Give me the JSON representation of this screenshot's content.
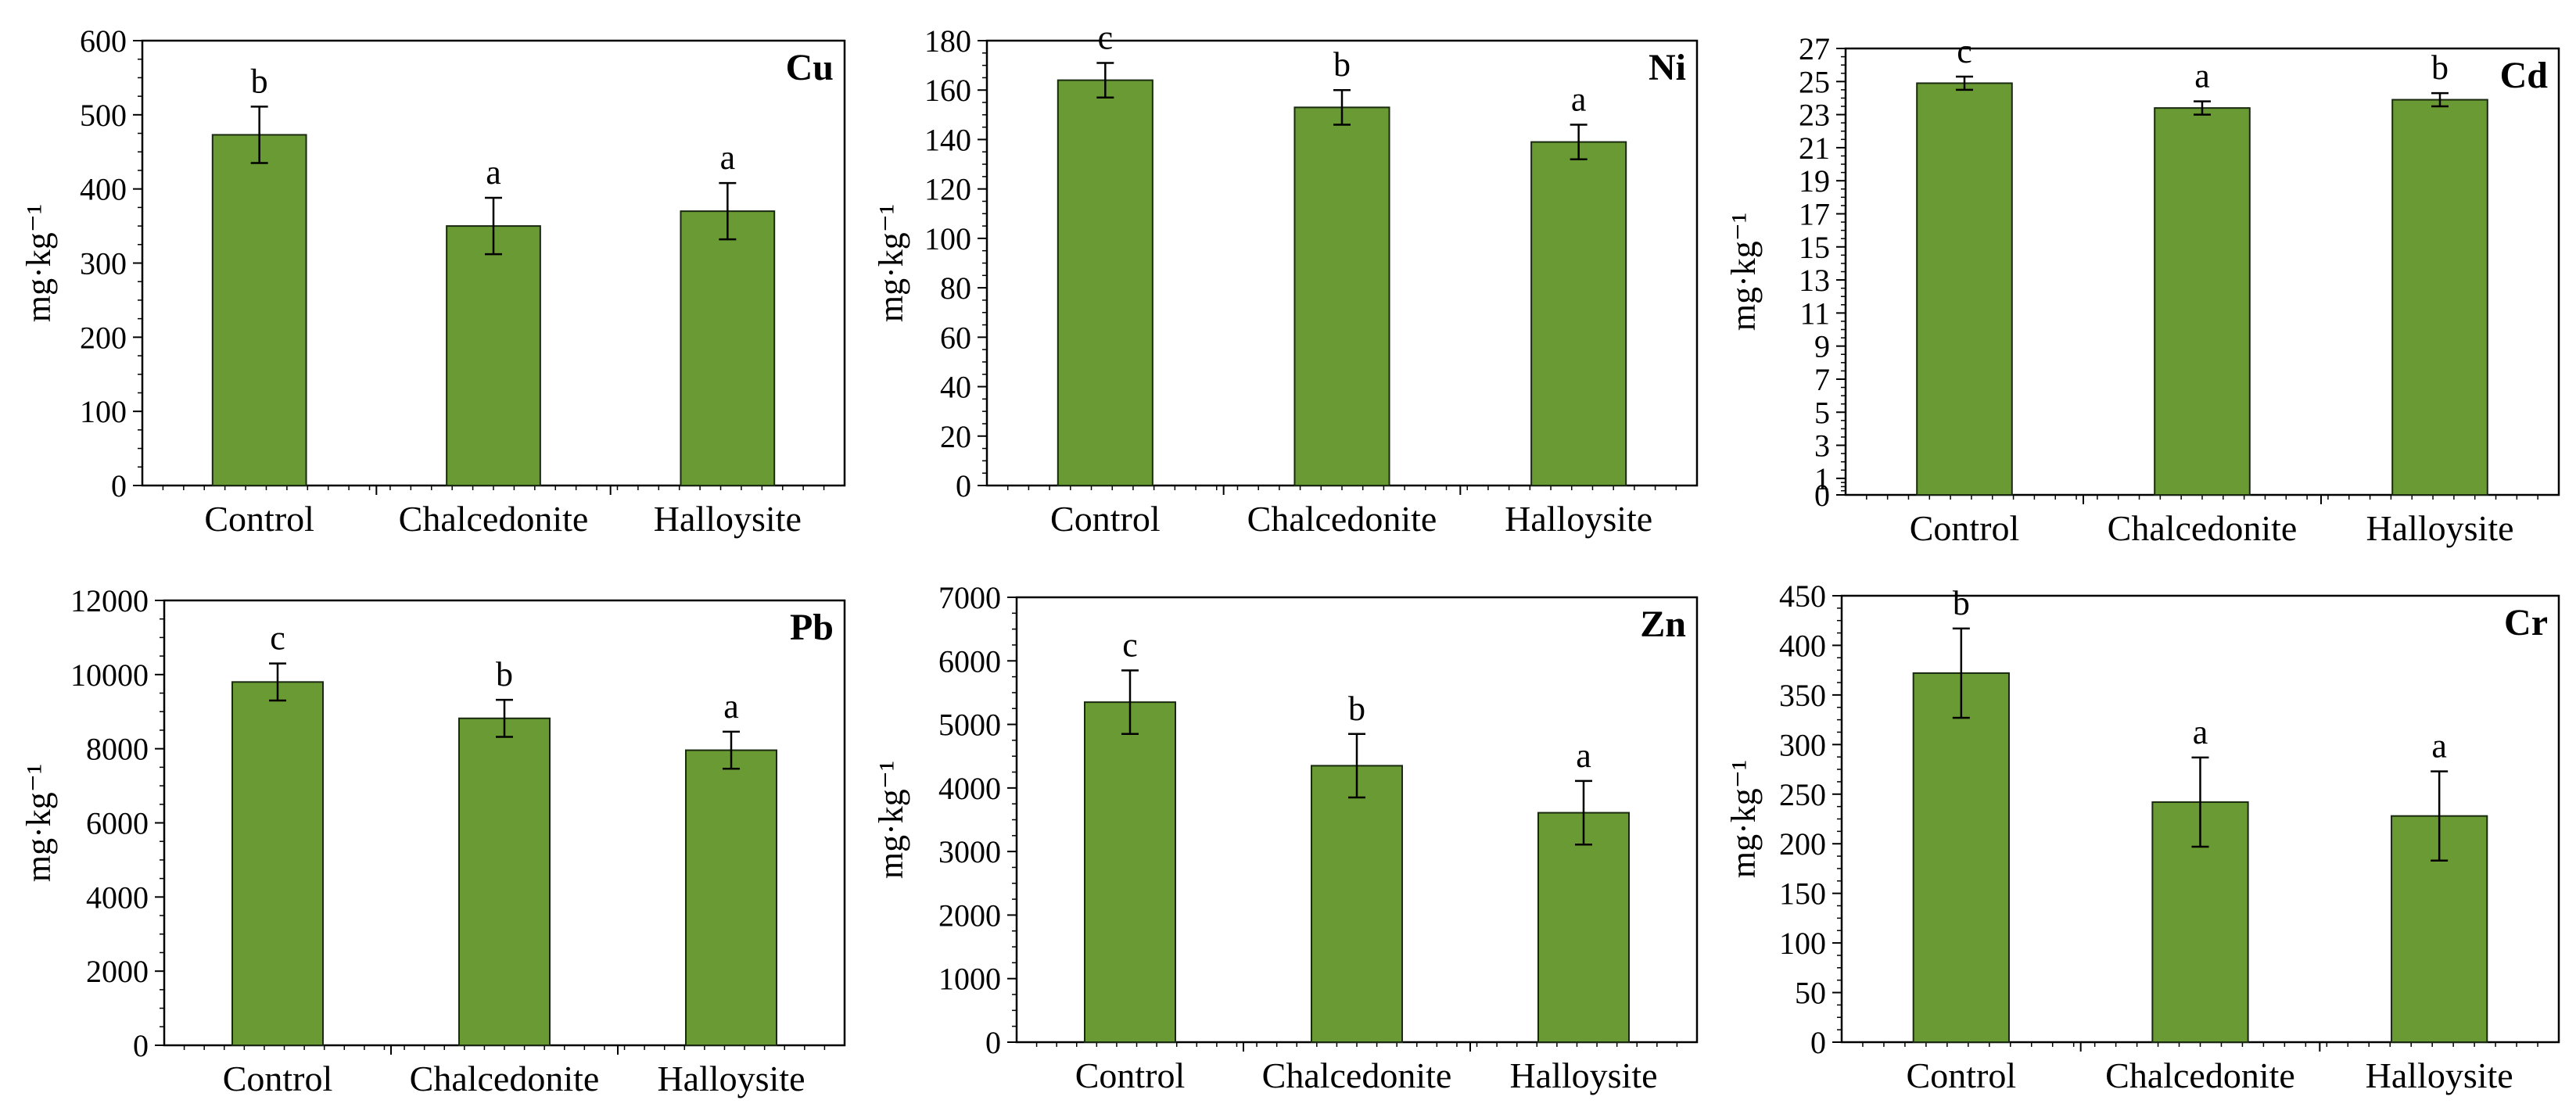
{
  "chart_data": [
    {
      "type": "bar",
      "title": "Cu",
      "ylabel": "mg·kg⁻¹",
      "xlabel": "",
      "categories": [
        "Control",
        "Chalcedonite",
        "Halloysite"
      ],
      "values": [
        473,
        350,
        370
      ],
      "errors": [
        38,
        38,
        38
      ],
      "letters": [
        "b",
        "a",
        "a"
      ],
      "ylim": [
        0,
        600
      ],
      "yticks": [
        0,
        100,
        200,
        300,
        400,
        500,
        600
      ],
      "bar_color": "#6a9a33",
      "grid": false
    },
    {
      "type": "bar",
      "title": "Ni",
      "ylabel": "mg·kg⁻¹",
      "xlabel": "",
      "categories": [
        "Control",
        "Chalcedonite",
        "Halloysite"
      ],
      "values": [
        164,
        153,
        139
      ],
      "errors": [
        7,
        7,
        7
      ],
      "letters": [
        "c",
        "b",
        "a"
      ],
      "ylim": [
        0,
        180
      ],
      "yticks": [
        0,
        20,
        40,
        60,
        80,
        100,
        120,
        140,
        160,
        180
      ],
      "bar_color": "#6a9a33",
      "grid": false
    },
    {
      "type": "bar",
      "title": "Cd",
      "ylabel": "mg·kg⁻¹",
      "xlabel": "",
      "categories": [
        "Control",
        "Chalcedonite",
        "Halloysite"
      ],
      "values": [
        24.9,
        23.4,
        23.9
      ],
      "errors": [
        0.4,
        0.4,
        0.4
      ],
      "letters": [
        "c",
        "a",
        "b"
      ],
      "ylim": [
        0,
        27
      ],
      "yticks": [
        0,
        1,
        3,
        5,
        7,
        9,
        11,
        13,
        15,
        17,
        19,
        21,
        23,
        25,
        27
      ],
      "bar_color": "#6a9a33",
      "grid": false
    },
    {
      "type": "bar",
      "title": "Pb",
      "ylabel": "mg·kg⁻¹",
      "xlabel": "",
      "categories": [
        "Control",
        "Chalcedonite",
        "Halloysite"
      ],
      "values": [
        9800,
        8820,
        7960
      ],
      "errors": [
        500,
        500,
        500
      ],
      "letters": [
        "c",
        "b",
        "a"
      ],
      "ylim": [
        0,
        12000
      ],
      "yticks": [
        0,
        2000,
        4000,
        6000,
        8000,
        10000,
        12000
      ],
      "bar_color": "#6a9a33",
      "grid": false
    },
    {
      "type": "bar",
      "title": "Zn",
      "ylabel": "mg·kg⁻¹",
      "xlabel": "",
      "categories": [
        "Control",
        "Chalcedonite",
        "Halloysite"
      ],
      "values": [
        5350,
        4350,
        3610
      ],
      "errors": [
        500,
        500,
        500
      ],
      "letters": [
        "c",
        "b",
        "a"
      ],
      "ylim": [
        0,
        7000
      ],
      "yticks": [
        0,
        1000,
        2000,
        3000,
        4000,
        5000,
        6000,
        7000
      ],
      "bar_color": "#6a9a33",
      "grid": false
    },
    {
      "type": "bar",
      "title": "Cr",
      "ylabel": "mg·kg⁻¹",
      "xlabel": "",
      "categories": [
        "Control",
        "Chalcedonite",
        "Halloysite"
      ],
      "values": [
        372,
        242,
        228
      ],
      "errors": [
        45,
        45,
        45
      ],
      "letters": [
        "b",
        "a",
        "a"
      ],
      "ylim": [
        0,
        450
      ],
      "yticks": [
        0,
        50,
        100,
        150,
        200,
        250,
        300,
        350,
        400,
        450
      ],
      "bar_color": "#6a9a33",
      "grid": false
    }
  ]
}
